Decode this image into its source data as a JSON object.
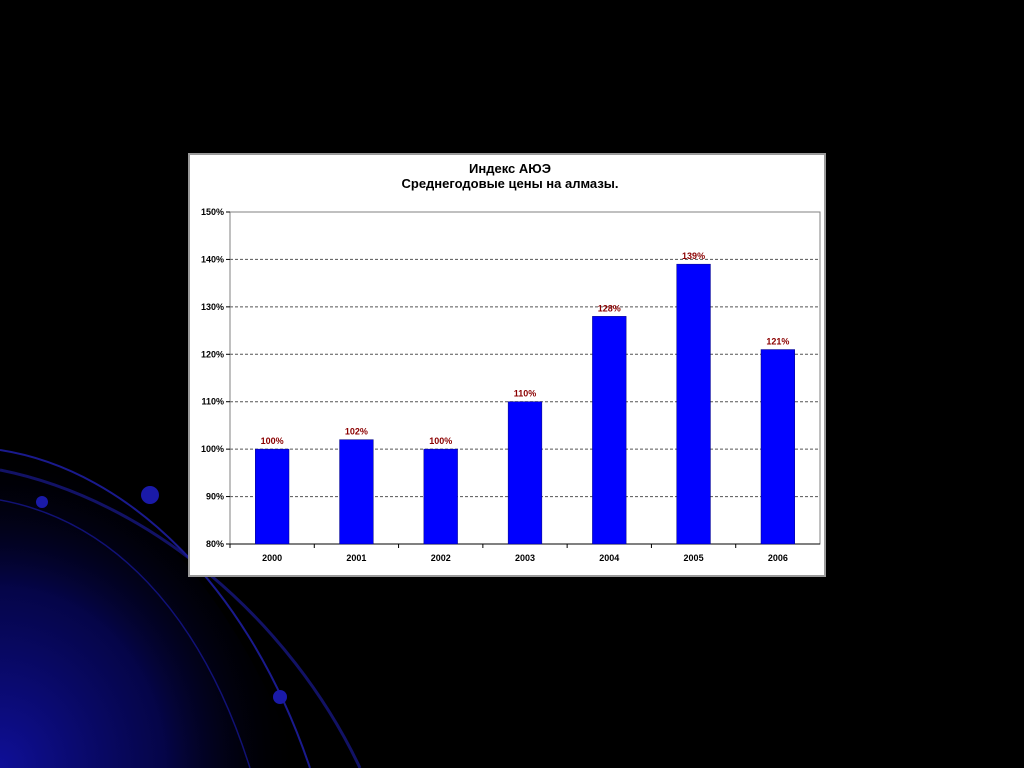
{
  "slide": {
    "background": "#000000",
    "decoration_color": "#1a1aa8"
  },
  "chart_data": {
    "type": "bar",
    "title": "Индекс АЮЭ",
    "subtitle": "Среднегодовые цены на алмазы.",
    "categories": [
      "2000",
      "2001",
      "2002",
      "2003",
      "2004",
      "2005",
      "2006"
    ],
    "values": [
      100,
      102,
      100,
      110,
      128,
      139,
      121
    ],
    "data_labels": [
      "100%",
      "102%",
      "100%",
      "110%",
      "128%",
      "139%",
      "121%"
    ],
    "ylim": [
      80,
      150
    ],
    "yticks": [
      80,
      90,
      100,
      110,
      120,
      130,
      140,
      150
    ],
    "ytick_labels": [
      "80%",
      "90%",
      "100%",
      "110%",
      "120%",
      "130%",
      "140%",
      "150%"
    ],
    "grid": true,
    "legend": "none",
    "bar_color": "#0000ff",
    "label_color": "#8b0000"
  }
}
